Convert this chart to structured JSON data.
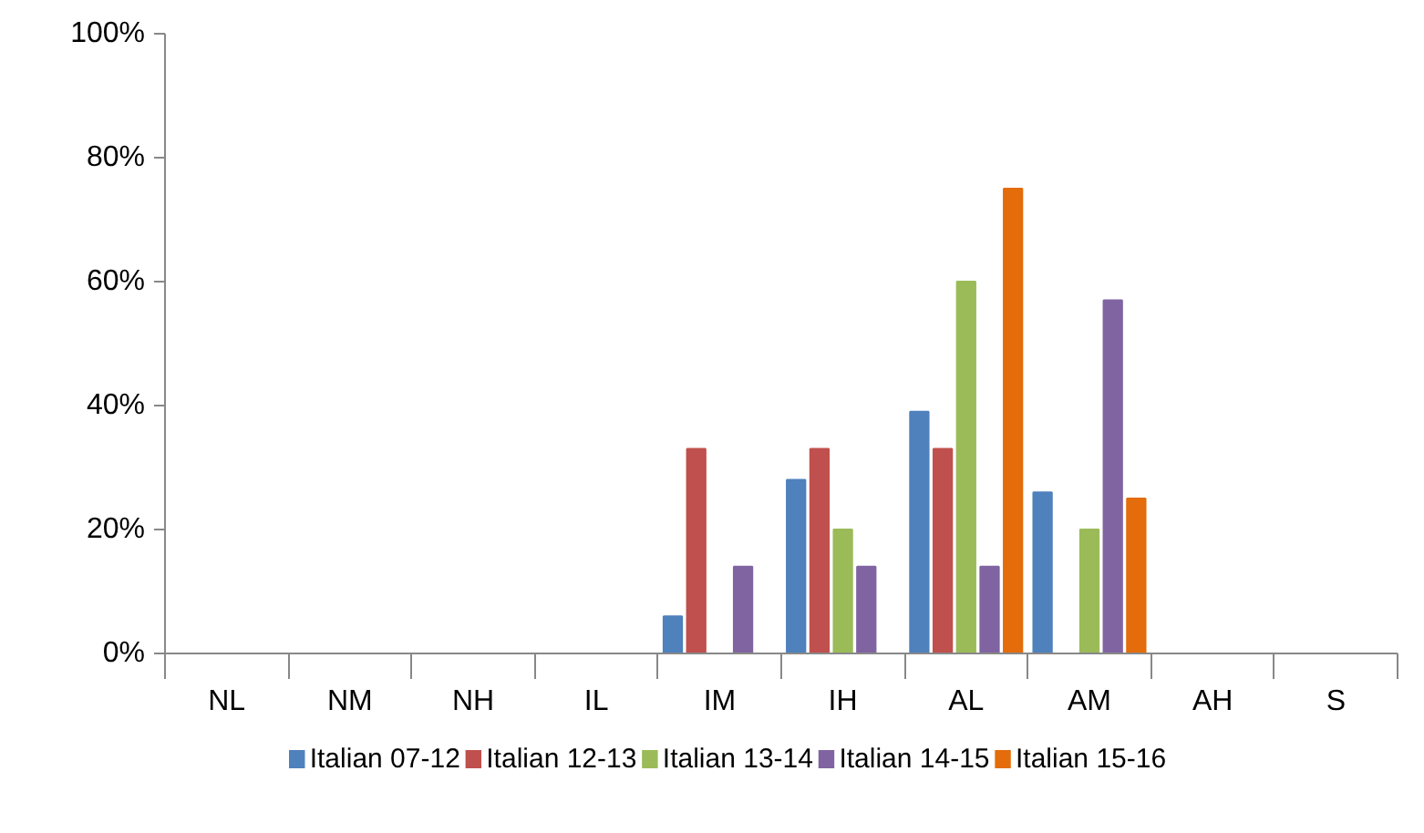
{
  "chart_data": {
    "type": "bar",
    "categories": [
      "NL",
      "NM",
      "NH",
      "IL",
      "IM",
      "IH",
      "AL",
      "AM",
      "AH",
      "S"
    ],
    "series": [
      {
        "name": "Italian 07-12",
        "color": "#4f81bd",
        "values": [
          null,
          null,
          null,
          null,
          6,
          28,
          39,
          26,
          null,
          null
        ]
      },
      {
        "name": "Italian 12-13",
        "color": "#c0504d",
        "values": [
          null,
          null,
          null,
          null,
          33,
          33,
          33,
          null,
          null,
          null
        ]
      },
      {
        "name": "Italian 13-14",
        "color": "#9bbb59",
        "values": [
          null,
          null,
          null,
          null,
          null,
          20,
          60,
          20,
          null,
          null
        ]
      },
      {
        "name": "Italian 14-15",
        "color": "#8064a2",
        "values": [
          null,
          null,
          null,
          null,
          14,
          14,
          14,
          57,
          null,
          null
        ]
      },
      {
        "name": "Italian 15-16",
        "color": "#e46c0a",
        "values": [
          null,
          null,
          null,
          null,
          null,
          null,
          75,
          25,
          null,
          null
        ]
      }
    ],
    "ylim": [
      0,
      100
    ],
    "yticks": [
      {
        "value": 0,
        "label": "0%"
      },
      {
        "value": 20,
        "label": "20%"
      },
      {
        "value": 40,
        "label": "40%"
      },
      {
        "value": 60,
        "label": "60%"
      },
      {
        "value": 80,
        "label": "80%"
      },
      {
        "value": 100,
        "label": "100%"
      }
    ],
    "grid": false,
    "legend": "bottom"
  }
}
